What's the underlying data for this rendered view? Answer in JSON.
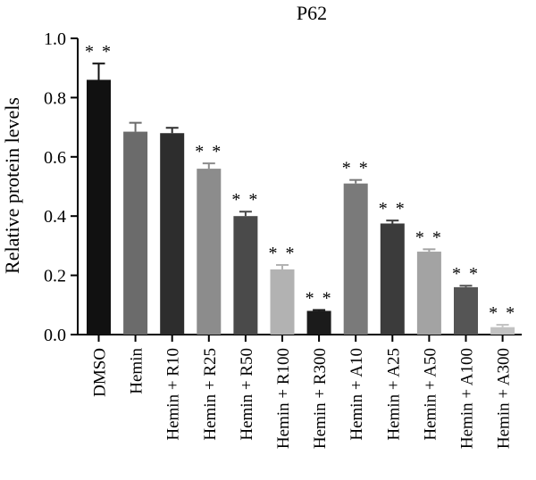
{
  "chart_data": {
    "type": "bar",
    "title": "P62",
    "xlabel": "",
    "ylabel": "Relative protein levels",
    "ylim": [
      0,
      1.0
    ],
    "yticks": [
      "0.0",
      "0.2",
      "0.4",
      "0.6",
      "0.8",
      "1.0"
    ],
    "grid": false,
    "categories": [
      "DMSO",
      "Hemin",
      "Hemin + R10",
      "Hemin + R25",
      "Hemin + R50",
      "Hemin + R100",
      "Hemin + R300",
      "Hemin + A10",
      "Hemin + A25",
      "Hemin + A50",
      "Hemin + A100",
      "Hemin + A300"
    ],
    "values": [
      0.86,
      0.685,
      0.68,
      0.56,
      0.4,
      0.22,
      0.08,
      0.51,
      0.375,
      0.28,
      0.16,
      0.025
    ],
    "errors": [
      0.055,
      0.03,
      0.018,
      0.018,
      0.015,
      0.015,
      0.003,
      0.012,
      0.01,
      0.008,
      0.005,
      0.008
    ],
    "significance": [
      "**",
      "",
      "",
      "**",
      "**",
      "**",
      "**",
      "**",
      "**",
      "**",
      "**",
      "**"
    ],
    "colors": [
      "#111111",
      "#6b6b6b",
      "#2d2d2d",
      "#8c8c8c",
      "#4a4a4a",
      "#b2b2b2",
      "#1b1b1b",
      "#7a7a7a",
      "#3b3b3b",
      "#a3a3a3",
      "#555555",
      "#c2c2c2"
    ]
  }
}
